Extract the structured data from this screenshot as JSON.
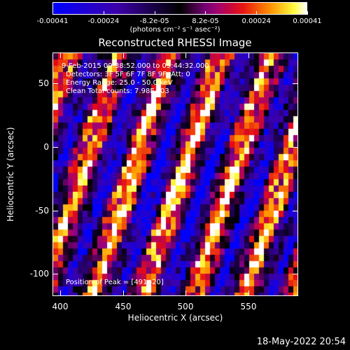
{
  "colorbar": {
    "labels": [
      "-0.00041",
      "-0.00024",
      "-8.2e-05",
      "8.2e-05",
      "0.00024",
      "0.00041"
    ],
    "units": "(photons cm⁻² s⁻¹ asec⁻²)"
  },
  "plot": {
    "title": "Reconstructed RHESSI Image",
    "info_lines": [
      "9-Feb-2015 09:38:52.000 to 09:44:32.000",
      "Detectors: 3F 5F 6F 7F 8F 9F, Att: 0",
      "Energy Range: 25.0 - 50.0 keV",
      "Clean     Total counts: 7.98E+03"
    ],
    "peak_label": "Position of Peak = [491,-20]",
    "xlabel": "Heliocentric X (arcsec)",
    "ylabel": "Heliocentric Y (arcsec)",
    "x_ticks": [
      "400",
      "450",
      "500",
      "550"
    ],
    "y_ticks": [
      "50",
      "0",
      "-50",
      "-100"
    ]
  },
  "timestamp": "18-May-2022 20:54"
}
